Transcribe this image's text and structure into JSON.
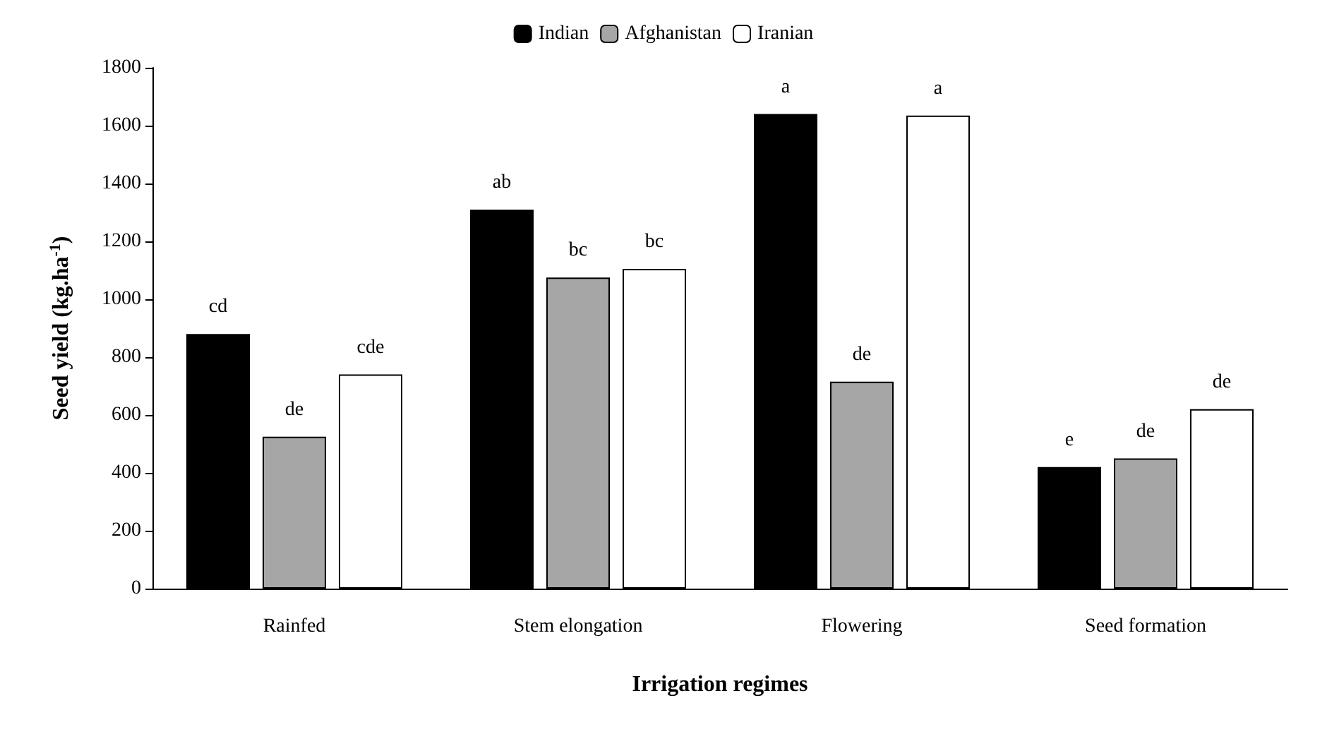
{
  "chart_data": {
    "type": "bar",
    "xlabel": "Irrigation regimes",
    "ylabel": "Seed yield (kg.ha$^{-1}$)",
    "categories": [
      "Rainfed",
      "Stem elongation",
      "Flowering",
      "Seed formation"
    ],
    "series": [
      {
        "name": "Indian",
        "color": "#000000",
        "values": [
          880,
          1310,
          1640,
          420
        ],
        "value_labels": [
          "cd",
          "ab",
          "a",
          "e"
        ]
      },
      {
        "name": "Afghanistan",
        "color": "#a6a6a6",
        "values": [
          525,
          1075,
          715,
          450
        ],
        "value_labels": [
          "de",
          "bc",
          "de",
          "de"
        ]
      },
      {
        "name": "Iranian",
        "color": "#ffffff",
        "values": [
          740,
          1105,
          1635,
          620
        ],
        "value_labels": [
          "cde",
          "bc",
          "a",
          "de"
        ]
      }
    ],
    "ylim": [
      0,
      1800
    ],
    "yticks": [
      0,
      200,
      400,
      600,
      800,
      1000,
      1200,
      1400,
      1600,
      1800
    ],
    "grid": false,
    "legend": "top"
  }
}
